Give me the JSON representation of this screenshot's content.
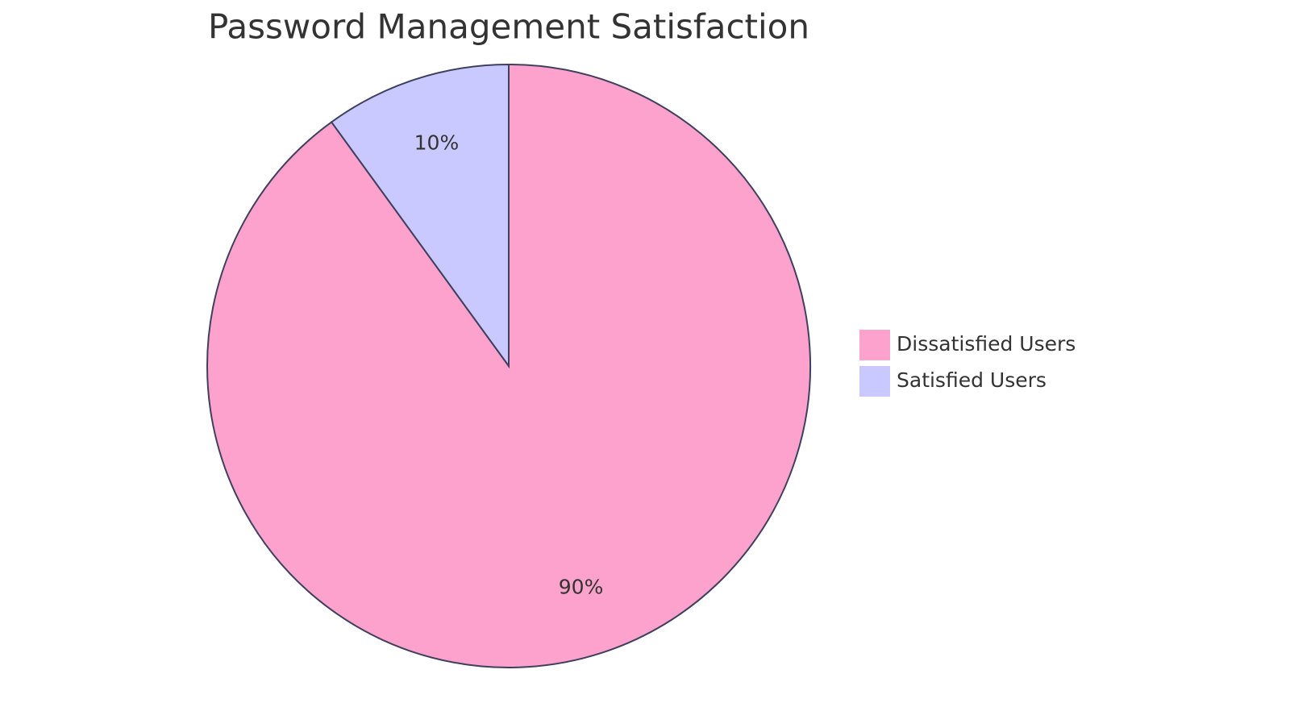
{
  "chart_data": {
    "type": "pie",
    "title": "Password Management Satisfaction",
    "categories": [
      "Dissatisfied Users",
      "Satisfied Users"
    ],
    "values": [
      90,
      10
    ],
    "value_labels": [
      "90%",
      "10%"
    ],
    "colors": [
      "#fda2cc",
      "#c9c9ff"
    ],
    "legend": "right"
  }
}
